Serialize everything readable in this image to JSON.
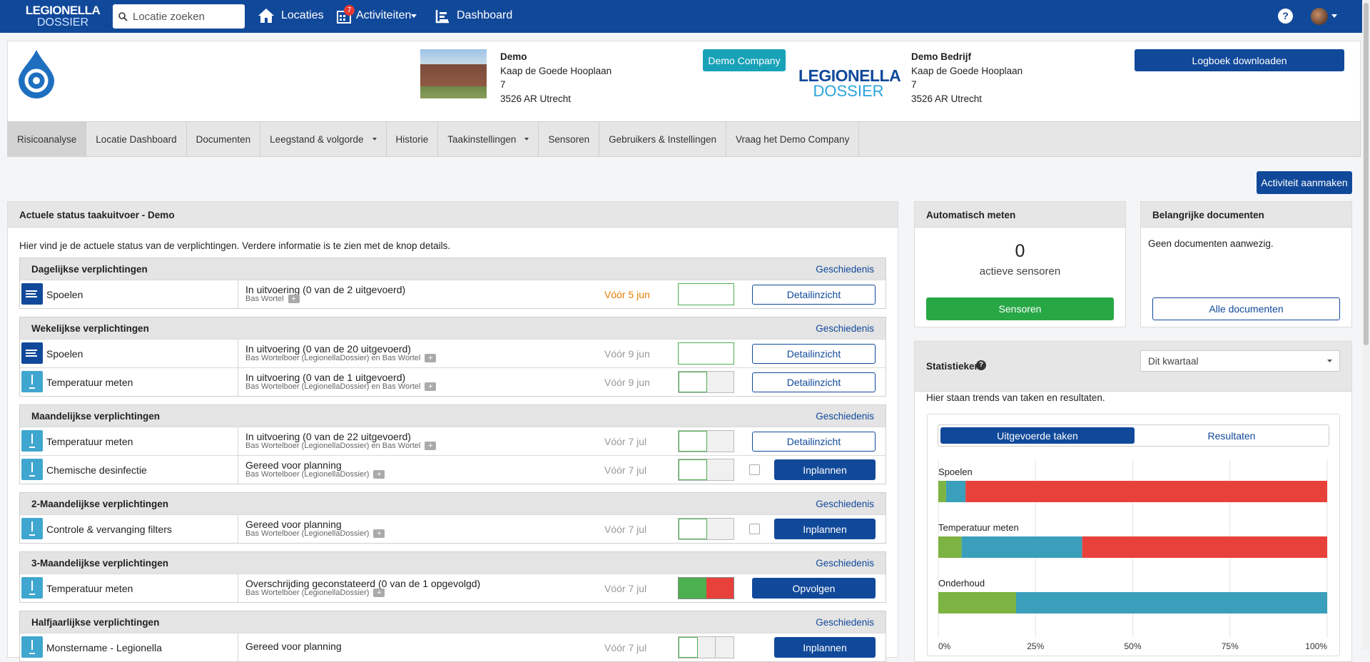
{
  "nav": {
    "logo": [
      "LEGIONELLA",
      "DOSSIER"
    ],
    "search_placeholder": "Locatie zoeken",
    "links": [
      "Locaties",
      "Activiteiten",
      "Dashboard"
    ],
    "badge": 7,
    "help": "?"
  },
  "header": {
    "location": {
      "name": "Demo",
      "address": [
        "Kaap de Goede Hooplaan",
        "7",
        "3526 AR Utrecht"
      ]
    },
    "company_button": "Demo Company",
    "partner_logo": [
      "LEGIONELLA",
      "DOSSIER"
    ],
    "company": {
      "name": "Demo Bedrijf",
      "address": [
        "Kaap de Goede Hooplaan",
        "7",
        "3526 AR Utrecht"
      ]
    },
    "download_button": "Logboek downloaden"
  },
  "tabs": [
    "Risicoanalyse",
    "Locatie Dashboard",
    "Documenten",
    "Leegstand & volgorde",
    "Historie",
    "Taakinstellingen",
    "Sensoren",
    "Gebruikers & Instellingen",
    "Vraag het Demo Company"
  ],
  "create_button": "Activiteit aanmaken",
  "status_panel": {
    "title": "Actuele status taakuitvoer - Demo",
    "intro": "Hier vind je de actuele status van de verplichtingen. Verdere informatie is te zien met de knop details.",
    "history_link": "Geschiedenis",
    "sections": [
      {
        "title": "Dagelijkse verplichtingen",
        "rows": [
          {
            "task": "Spoelen",
            "status": "In uitvoering (0 van de 2 uitgevoerd)",
            "assignee": "Bas Wortel",
            "due": "Vóór 5 jun",
            "action": "Detailinzicht"
          }
        ]
      },
      {
        "title": "Wekelijkse verplichtingen",
        "rows": [
          {
            "task": "Spoelen",
            "status": "In uitvoering (0 van de 20 uitgevoerd)",
            "assignee": "Bas Wortelboer (LegionellaDossier) en Bas Wortel",
            "due": "Vóór 9 jun",
            "action": "Detailinzicht"
          },
          {
            "task": "Temperatuur meten",
            "status": "In uitvoering (0 van de 1 uitgevoerd)",
            "assignee": "Bas Wortelboer (LegionellaDossier) en Bas Wortel",
            "due": "Vóór 9 jun",
            "action": "Detailinzicht"
          }
        ]
      },
      {
        "title": "Maandelijkse verplichtingen",
        "rows": [
          {
            "task": "Temperatuur meten",
            "status": "In uitvoering (0 van de 22 uitgevoerd)",
            "assignee": "Bas Wortelboer (LegionellaDossier) en Bas Wortel",
            "due": "Vóór 7 jul",
            "action": "Detailinzicht"
          },
          {
            "task": "Chemische desinfectie",
            "status": "Gereed voor planning",
            "assignee": "Bas Wortelboer (LegionellaDossier)",
            "due": "Vóór 7 jul",
            "action": "Inplannen"
          }
        ]
      },
      {
        "title": "2-Maandelijkse verplichtingen",
        "rows": [
          {
            "task": "Controle & vervanging filters",
            "status": "Gereed voor planning",
            "assignee": "Bas Wortelboer (LegionellaDossier)",
            "due": "Vóór 7 jul",
            "action": "Inplannen"
          }
        ]
      },
      {
        "title": "3-Maandelijkse verplichtingen",
        "rows": [
          {
            "task": "Temperatuur meten",
            "status": "Overschrijding geconstateerd (0 van de 1 opgevolgd)",
            "assignee": "Bas Wortelboer (LegionellaDossier)",
            "due": "Vóór 7 jul",
            "action": "Opvolgen"
          }
        ]
      },
      {
        "title": "Halfjaarlijkse verplichtingen",
        "rows": [
          {
            "task": "Monstername - Legionella",
            "status": "Gereed voor planning",
            "due": "Vóór 7 jul",
            "action": "Inplannen"
          }
        ]
      }
    ]
  },
  "auto_measure": {
    "title": "Automatisch meten",
    "count": 0,
    "count_label": "actieve sensoren",
    "button": "Sensoren"
  },
  "documents": {
    "title": "Belangrijke documenten",
    "empty": "Geen documenten aanwezig.",
    "button": "Alle documenten"
  },
  "statistics": {
    "title": "Statistieken",
    "period": "Dit kwartaal",
    "intro": "Hier staan trends van taken en resultaten.",
    "tabs": [
      "Uitgevoerde taken",
      "Resultaten"
    ]
  },
  "chart_data": {
    "type": "bar",
    "orientation": "horizontal",
    "stacked": true,
    "categories": [
      "Spoelen",
      "Temperatuur meten",
      "Onderhoud"
    ],
    "series": [
      {
        "color": "#7cb342",
        "values": [
          2,
          6,
          20
        ]
      },
      {
        "color": "#3a9fba",
        "values": [
          5,
          31,
          80
        ]
      },
      {
        "color": "#e8413c",
        "values": [
          93,
          63,
          0
        ]
      }
    ],
    "xlim": [
      0,
      100
    ],
    "xticks": [
      {
        "value": 0,
        "label": "0%"
      },
      {
        "value": 25,
        "label": "25%"
      },
      {
        "value": 50,
        "label": "50%"
      },
      {
        "value": 75,
        "label": "75%"
      },
      {
        "value": 100,
        "label": "100%"
      }
    ],
    "grid": true
  }
}
